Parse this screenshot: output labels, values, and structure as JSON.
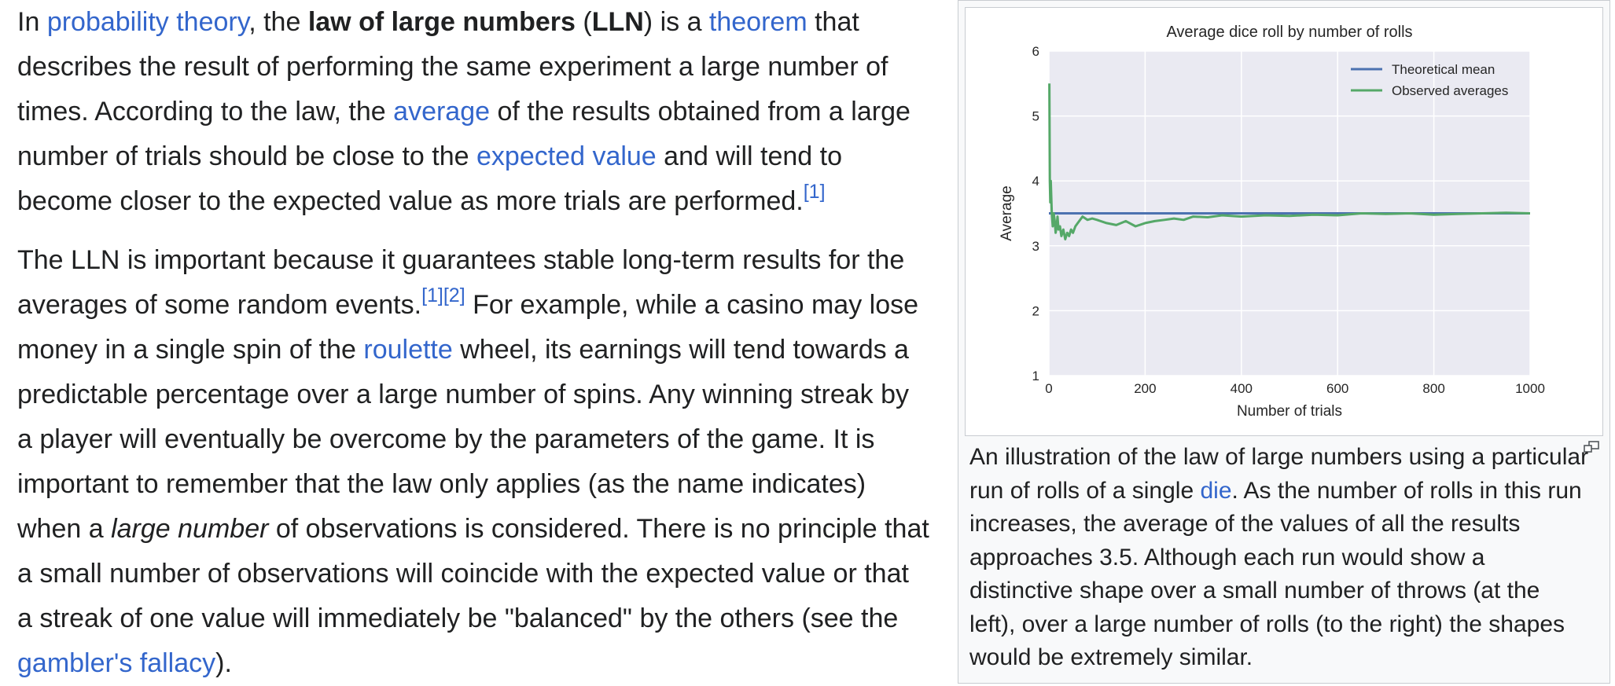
{
  "article": {
    "p1": {
      "t1": "In ",
      "link_probability": "probability theory",
      "t2": ", the ",
      "bold_lln": "law of large numbers",
      "t3": " (",
      "bold_abbr": "LLN",
      "t4": ") is a ",
      "link_theorem": "theorem",
      "t5": " that describes the result of performing the same experiment a large number of times. According to the law, the ",
      "link_average": "average",
      "t6": " of the results obtained from a large number of trials should be close to the ",
      "link_expected": "expected value",
      "t7": " and will tend to become closer to the expected value as more trials are performed.",
      "ref1": "[1]"
    },
    "p2": {
      "t1": "The LLN is important because it guarantees stable long-term results for the averages of some random events.",
      "ref1": "[1]",
      "ref2": "[2]",
      "t2": " For example, while a casino may lose money in a single spin of the ",
      "link_roulette": "roulette",
      "t3": " wheel, its earnings will tend towards a predictable percentage over a large number of spins. Any winning streak by a player will eventually be overcome by the parameters of the game. It is important to remember that the law only applies (as the name indicates) when a ",
      "italic": "large number",
      "t4": " of observations is considered. There is no principle that a small number of observations will coincide with the expected value or that a streak of one value will immediately be \"balanced\" by the others (see the ",
      "link_gambler": "gambler's fallacy",
      "t5": ")."
    }
  },
  "figure": {
    "caption": {
      "t1": "An illustration of the law of large numbers using a particular run of rolls of a single ",
      "link_die": "die",
      "t2": ". As the number of rolls in this run increases, the average of the values of all the results approaches 3.5. Although each run would show a distinctive shape over a small number of throws (at the left), over a large number of rolls (to the right) the shapes would be extremely similar."
    },
    "magnify_icon": "magnify-clip-icon"
  },
  "chart_data": {
    "type": "line",
    "title": "Average dice roll by number of rolls",
    "xlabel": "Number of trials",
    "ylabel": "Average",
    "xlim": [
      0,
      1000
    ],
    "ylim": [
      1,
      6
    ],
    "x_ticks": [
      "0",
      "200",
      "400",
      "600",
      "800",
      "1000"
    ],
    "y_ticks": [
      "1",
      "2",
      "3",
      "4",
      "5",
      "6"
    ],
    "grid": true,
    "legend_position": "top-right",
    "background": "#eaeaf2",
    "series": [
      {
        "name": "Theoretical mean",
        "color": "#4c72b0",
        "x": [
          0,
          1000
        ],
        "y": [
          3.5,
          3.5
        ]
      },
      {
        "name": "Observed averages",
        "color": "#55a868",
        "x": [
          1,
          2,
          3,
          4,
          6,
          8,
          10,
          12,
          14,
          16,
          18,
          20,
          23,
          26,
          30,
          34,
          38,
          42,
          46,
          50,
          55,
          60,
          70,
          80,
          90,
          100,
          120,
          140,
          160,
          180,
          200,
          220,
          240,
          260,
          280,
          300,
          330,
          360,
          400,
          450,
          500,
          550,
          600,
          650,
          700,
          750,
          800,
          850,
          900,
          950,
          1000
        ],
        "y": [
          5.5,
          4.0,
          3.67,
          4.0,
          3.5,
          3.3,
          3.5,
          3.4,
          3.2,
          3.3,
          3.45,
          3.25,
          3.3,
          3.15,
          3.25,
          3.1,
          3.2,
          3.15,
          3.25,
          3.2,
          3.3,
          3.35,
          3.45,
          3.4,
          3.42,
          3.4,
          3.35,
          3.32,
          3.38,
          3.3,
          3.35,
          3.38,
          3.4,
          3.42,
          3.4,
          3.45,
          3.44,
          3.47,
          3.45,
          3.47,
          3.46,
          3.48,
          3.47,
          3.5,
          3.49,
          3.5,
          3.48,
          3.49,
          3.5,
          3.51,
          3.5
        ]
      }
    ]
  }
}
